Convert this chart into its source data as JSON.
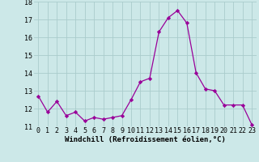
{
  "x": [
    0,
    1,
    2,
    3,
    4,
    5,
    6,
    7,
    8,
    9,
    10,
    11,
    12,
    13,
    14,
    15,
    16,
    17,
    18,
    19,
    20,
    21,
    22,
    23
  ],
  "y": [
    12.7,
    11.8,
    12.4,
    11.6,
    11.8,
    11.3,
    11.5,
    11.4,
    11.5,
    11.6,
    12.5,
    13.5,
    13.7,
    16.3,
    17.1,
    17.5,
    16.8,
    14.0,
    13.1,
    13.0,
    12.2,
    12.2,
    12.2,
    11.1
  ],
  "line_color": "#990099",
  "marker": "D",
  "marker_size": 2.2,
  "bg_color": "#cce8e8",
  "grid_color": "#aacccc",
  "xlabel": "Windchill (Refroidissement éolien,°C)",
  "xlabel_fontsize": 6.5,
  "tick_fontsize": 6.0,
  "ylim": [
    11,
    18
  ],
  "yticks": [
    11,
    12,
    13,
    14,
    15,
    16,
    17,
    18
  ],
  "xticks": [
    0,
    1,
    2,
    3,
    4,
    5,
    6,
    7,
    8,
    9,
    10,
    11,
    12,
    13,
    14,
    15,
    16,
    17,
    18,
    19,
    20,
    21,
    22,
    23
  ]
}
